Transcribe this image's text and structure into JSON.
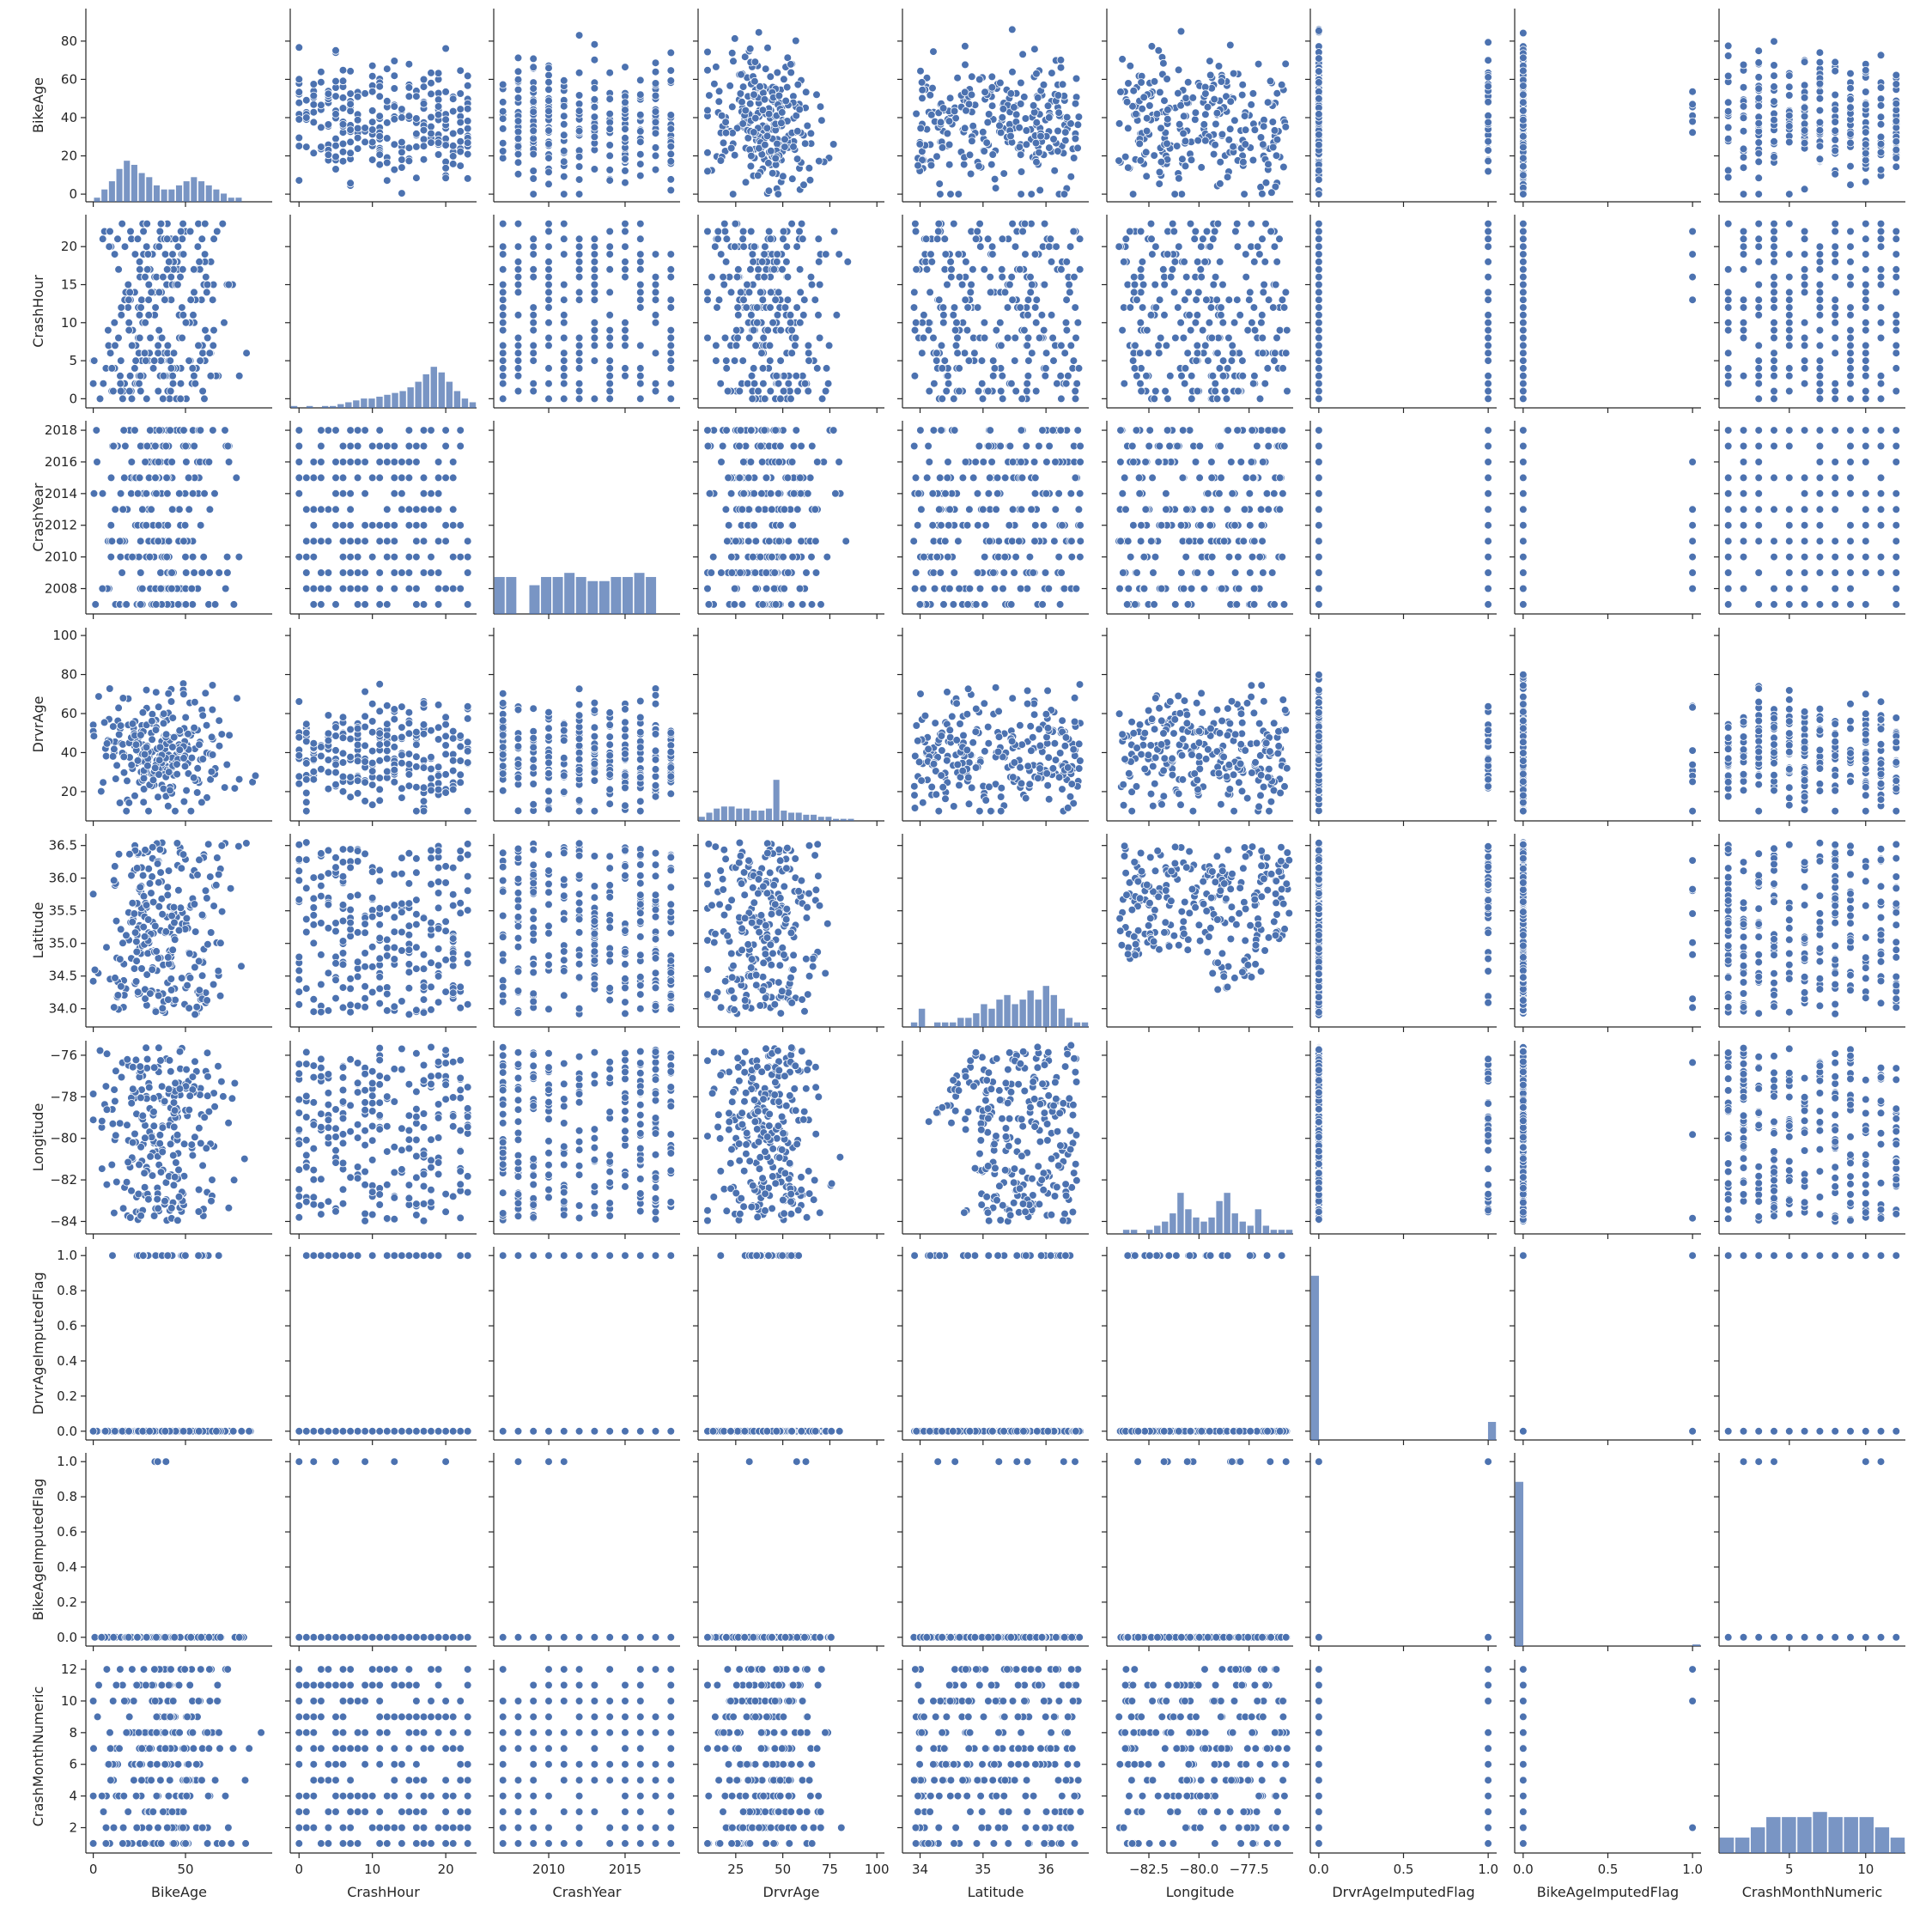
{
  "chart_data": {
    "type": "scatter",
    "kind": "pairplot",
    "marker_color": "#4c72b0",
    "variables": [
      {
        "name": "BikeAge",
        "range": [
          -4,
          97
        ],
        "ticks": [
          0,
          20,
          40,
          60,
          80
        ],
        "xticks": [
          0,
          50
        ],
        "diag": [
          0,
          1,
          3,
          5,
          8,
          10,
          9,
          7,
          6,
          4,
          3,
          3,
          4,
          5,
          6,
          5,
          4,
          3,
          2,
          1,
          1,
          0,
          0,
          0,
          0
        ]
      },
      {
        "name": "CrashHour",
        "range": [
          -1.2,
          24.2
        ],
        "ticks": [
          0,
          5,
          10,
          15,
          20
        ],
        "xticks": [
          0,
          10,
          20
        ],
        "diag": [
          1,
          0,
          1,
          0,
          1,
          1,
          2,
          3,
          4,
          5,
          5,
          6,
          7,
          8,
          9,
          11,
          14,
          18,
          22,
          19,
          14,
          9,
          5,
          3
        ]
      },
      {
        "name": "CrashYear",
        "range": [
          2006.4,
          2018.6
        ],
        "ticks": [
          2008,
          2010,
          2012,
          2014,
          2016,
          2018
        ],
        "xticks": [
          2010,
          2015
        ],
        "diag": [
          9,
          9,
          0,
          7,
          9,
          9,
          10,
          9,
          8,
          8,
          9,
          9,
          10,
          9,
          0,
          0
        ]
      },
      {
        "name": "DrvrAge",
        "range": [
          5,
          104
        ],
        "ticks": [
          20,
          40,
          60,
          80,
          100
        ],
        "xticks": [
          25,
          50,
          75,
          100
        ],
        "diag": [
          2,
          4,
          6,
          7,
          7,
          6,
          6,
          5,
          5,
          6,
          20,
          5,
          4,
          4,
          3,
          3,
          2,
          2,
          1,
          1,
          1,
          0,
          0,
          0,
          0
        ]
      },
      {
        "name": "Latitude",
        "range": [
          33.72,
          36.68
        ],
        "ticks": [
          34.0,
          34.5,
          35.0,
          35.5,
          36.0,
          36.5
        ],
        "xticks": [
          34,
          35,
          36
        ],
        "diag": [
          0,
          1,
          4,
          0,
          1,
          1,
          1,
          2,
          2,
          3,
          5,
          4,
          6,
          7,
          5,
          6,
          8,
          6,
          9,
          7,
          4,
          2,
          1,
          1
        ]
      },
      {
        "name": "Longitude",
        "range": [
          -84.6,
          -75.3
        ],
        "ticks": [
          -84,
          -82,
          -80,
          -78,
          -76
        ],
        "xticks": [
          -82.5,
          -80.0,
          -77.5
        ],
        "diag": [
          0,
          0,
          1,
          1,
          0,
          1,
          2,
          3,
          5,
          10,
          6,
          4,
          3,
          4,
          8,
          10,
          5,
          3,
          2,
          6,
          2,
          1,
          1,
          1
        ]
      },
      {
        "name": "DrvrAgeImputedFlag",
        "range": [
          -0.05,
          1.05
        ],
        "ticks": [
          0.0,
          0.2,
          0.4,
          0.6,
          0.8,
          1.0
        ],
        "xticks": [
          0.0,
          0.5,
          1.0
        ],
        "diag": [
          100,
          0,
          0,
          0,
          0,
          0,
          0,
          0,
          0,
          0,
          0,
          0,
          0,
          0,
          0,
          0,
          0,
          0,
          0,
          11
        ]
      },
      {
        "name": "BikeAgeImputedFlag",
        "range": [
          -0.05,
          1.05
        ],
        "ticks": [
          0.0,
          0.2,
          0.4,
          0.6,
          0.8,
          1.0
        ],
        "xticks": [
          0.0,
          0.5,
          1.0
        ],
        "diag": [
          100,
          0,
          0,
          0,
          0,
          0,
          0,
          0,
          0,
          0,
          0,
          0,
          0,
          0,
          0,
          0,
          0,
          0,
          0,
          1
        ]
      },
      {
        "name": "CrashMonthNumeric",
        "range": [
          0.4,
          12.6
        ],
        "ticks": [
          2,
          4,
          6,
          8,
          10,
          12
        ],
        "xticks": [
          5,
          10
        ],
        "diag": [
          3,
          3,
          5,
          7,
          7,
          7,
          8,
          7,
          7,
          7,
          5,
          3
        ]
      }
    ],
    "tick_labels": {
      "BikeAge": [
        "0",
        "20",
        "40",
        "60",
        "80"
      ],
      "CrashHour": [
        "0",
        "5",
        "10",
        "15",
        "20"
      ],
      "CrashYear": [
        "2008",
        "2010",
        "2012",
        "2014",
        "2016",
        "2018"
      ],
      "DrvrAge": [
        "20",
        "40",
        "60",
        "80",
        "100"
      ],
      "Latitude": [
        "34.0",
        "34.5",
        "35.0",
        "35.5",
        "36.0",
        "36.5"
      ],
      "Longitude": [
        "−84",
        "−82",
        "−80",
        "−78",
        "−76"
      ],
      "DrvrAgeImputedFlag": [
        "0.0",
        "0.2",
        "0.4",
        "0.6",
        "0.8",
        "1.0"
      ],
      "BikeAgeImputedFlag": [
        "0.0",
        "0.2",
        "0.4",
        "0.6",
        "0.8",
        "1.0"
      ],
      "CrashMonthNumeric": [
        "2",
        "4",
        "6",
        "8",
        "10",
        "12"
      ]
    },
    "xtick_labels": {
      "BikeAge": [
        "0",
        "50"
      ],
      "CrashHour": [
        "0",
        "10",
        "20"
      ],
      "CrashYear": [
        "2010",
        "2015"
      ],
      "DrvrAge": [
        "25",
        "50",
        "75",
        "100"
      ],
      "Latitude": [
        "34",
        "35",
        "36"
      ],
      "Longitude": [
        "−82.5",
        "−80.0",
        "−77.5"
      ],
      "DrvrAgeImputedFlag": [
        "0.0",
        "0.5",
        "1.0"
      ],
      "BikeAgeImputedFlag": [
        "0.0",
        "0.5",
        "1.0"
      ],
      "CrashMonthNumeric": [
        "5",
        "10"
      ]
    },
    "grid": false,
    "legend": "none"
  }
}
